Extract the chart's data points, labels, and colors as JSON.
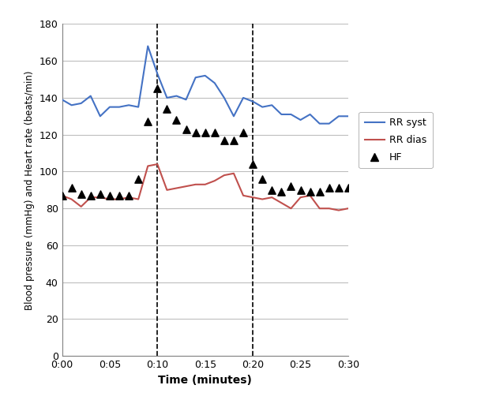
{
  "rr_syst_x": [
    0,
    1,
    2,
    3,
    4,
    5,
    6,
    7,
    8,
    9,
    10,
    11,
    12,
    13,
    14,
    15,
    16,
    17,
    18,
    19,
    20,
    21,
    22,
    23,
    24,
    25,
    26,
    27,
    28,
    29,
    30
  ],
  "rr_syst_y": [
    139,
    136,
    137,
    141,
    130,
    135,
    135,
    136,
    135,
    168,
    153,
    140,
    141,
    139,
    151,
    152,
    148,
    140,
    130,
    140,
    138,
    135,
    136,
    131,
    131,
    128,
    131,
    126,
    126,
    130,
    130
  ],
  "rr_dias_x": [
    0,
    1,
    2,
    3,
    4,
    5,
    6,
    7,
    8,
    9,
    10,
    11,
    12,
    13,
    14,
    15,
    16,
    17,
    18,
    19,
    20,
    21,
    22,
    23,
    24,
    25,
    26,
    27,
    28,
    29,
    30
  ],
  "rr_dias_y": [
    87,
    85,
    81,
    86,
    86,
    85,
    85,
    86,
    85,
    103,
    104,
    90,
    91,
    92,
    93,
    93,
    95,
    98,
    99,
    87,
    86,
    85,
    86,
    83,
    80,
    86,
    87,
    80,
    80,
    79,
    80
  ],
  "hf_x": [
    0,
    1,
    2,
    3,
    4,
    5,
    6,
    7,
    8,
    9,
    10,
    11,
    12,
    13,
    14,
    15,
    16,
    17,
    18,
    19,
    20,
    21,
    22,
    23,
    24,
    25,
    26,
    27,
    28,
    29,
    30
  ],
  "hf_y": [
    87,
    91,
    88,
    87,
    88,
    87,
    87,
    87,
    96,
    127,
    145,
    134,
    128,
    123,
    121,
    121,
    121,
    117,
    117,
    121,
    104,
    96,
    90,
    89,
    92,
    90,
    89,
    89,
    91,
    91,
    91
  ],
  "dashed_lines": [
    10,
    20
  ],
  "ylim": [
    0,
    180
  ],
  "yticks": [
    0,
    20,
    40,
    60,
    80,
    100,
    120,
    140,
    160,
    180
  ],
  "xlim": [
    0,
    30
  ],
  "xtick_labels": [
    "0:00",
    "0:05",
    "0:10",
    "0:15",
    "0:20",
    "0:25",
    "0:30"
  ],
  "xtick_positions": [
    0,
    5,
    10,
    15,
    20,
    25,
    30
  ],
  "xlabel": "Time (minutes)",
  "ylabel": "Blood pressure (mmHg) and Heart rate (beats/min)",
  "rr_syst_color": "#4472C4",
  "rr_dias_color": "#C0504D",
  "hf_color": "#000000",
  "legend_labels": [
    "RR syst",
    "RR dias",
    "HF"
  ],
  "grid_color": "#BEBEBE",
  "spine_color": "#808080",
  "fig_width": 6.04,
  "fig_height": 5.07,
  "dpi": 100
}
